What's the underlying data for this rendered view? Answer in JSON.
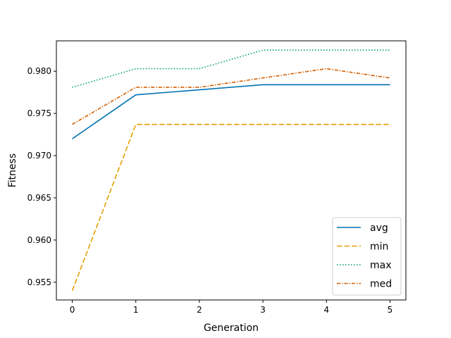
{
  "chart_data": {
    "type": "line",
    "xlabel": "Generation",
    "ylabel": "Fitness",
    "x": [
      0,
      1,
      2,
      3,
      4,
      5
    ],
    "xlim": [
      -0.25,
      5.25
    ],
    "ylim": [
      0.9529,
      0.9836
    ],
    "xticks": [
      0,
      1,
      2,
      3,
      4,
      5
    ],
    "xtick_labels": [
      "0",
      "1",
      "2",
      "3",
      "4",
      "5"
    ],
    "yticks": [
      0.955,
      0.96,
      0.965,
      0.97,
      0.975,
      0.98
    ],
    "ytick_labels": [
      "0.955",
      "0.960",
      "0.965",
      "0.970",
      "0.975",
      "0.980"
    ],
    "grid": false,
    "legend_position": "bottom-right",
    "series": [
      {
        "name": "avg",
        "values": [
          0.972,
          0.9772,
          0.9778,
          0.9784,
          0.9784,
          0.9784
        ],
        "color": "#0072b2",
        "dash": "solid"
      },
      {
        "name": "min",
        "values": [
          0.954,
          0.9737,
          0.9737,
          0.9737,
          0.9737,
          0.9737
        ],
        "color": "#e69f00",
        "dash": "dashed"
      },
      {
        "name": "max",
        "values": [
          0.9781,
          0.9803,
          0.9803,
          0.9825,
          0.9825,
          0.9825
        ],
        "color": "#009e73",
        "dash": "dotted"
      },
      {
        "name": "med",
        "values": [
          0.9737,
          0.9781,
          0.9781,
          0.9792,
          0.9803,
          0.9792
        ],
        "color": "#d55e00",
        "dash": "dashdot"
      }
    ]
  }
}
